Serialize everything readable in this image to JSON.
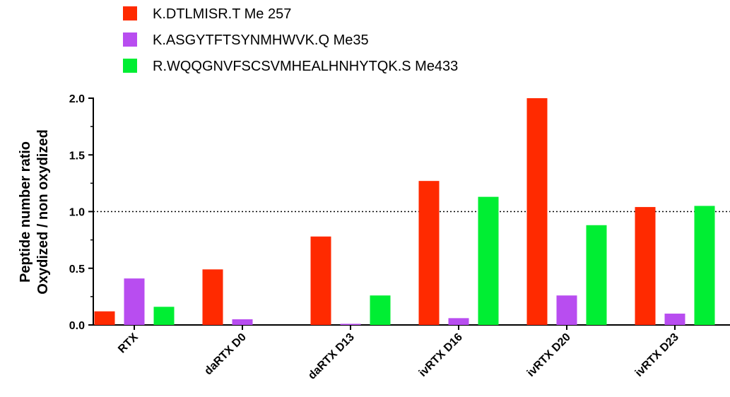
{
  "chart_data": {
    "type": "bar",
    "categories": [
      "RTX",
      "daRTX D0",
      "daRTX D13",
      "ivRTX D16",
      "ivRTX D20",
      "ivRTX D23"
    ],
    "series": [
      {
        "name": "K.DTLMISR.T Me 257",
        "color": "#ff2a00",
        "values": [
          0.12,
          0.49,
          0.78,
          1.27,
          2.0,
          1.04
        ]
      },
      {
        "name": "K.ASGYTFTSYNMHWVK.Q Me35",
        "color": "#b84df0",
        "values": [
          0.41,
          0.05,
          0.01,
          0.06,
          0.26,
          0.1
        ]
      },
      {
        "name": "R.WQQGNVFSCSVMHEALHNHYTQK.S Me433",
        "color": "#00ee33",
        "values": [
          0.16,
          0.0,
          0.26,
          1.13,
          0.88,
          1.05
        ]
      }
    ],
    "ylabel_lines": [
      "Peptide number ratio",
      "Oxydized / non oxydized"
    ],
    "ylim": [
      0,
      2.0
    ],
    "yticks": [
      "0.0",
      "0.5",
      "1.0",
      "1.5",
      "2.0"
    ],
    "reference_line": 1.0,
    "grid": false,
    "legend_position": "top-left"
  }
}
